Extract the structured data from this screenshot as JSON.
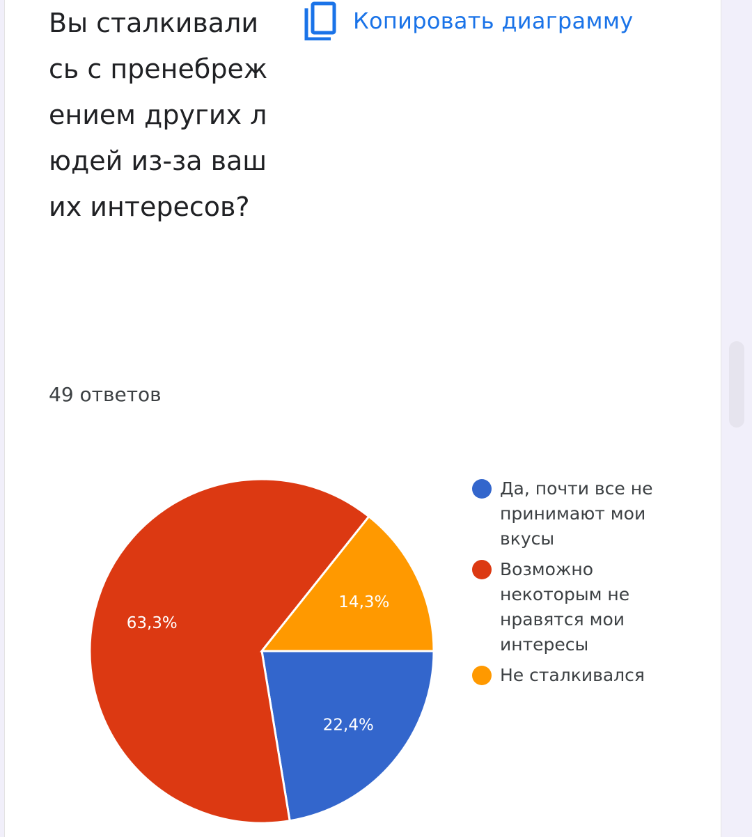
{
  "question": {
    "title": "Вы сталкивались с пренебрежением других людей из-за ваших интересов?",
    "responses_label": "49 ответов"
  },
  "toolbar": {
    "copy_label": "Копировать диаграмму",
    "copy_icon": "copy-icon"
  },
  "colors": {
    "blue": "#3366cc",
    "red": "#dc3912",
    "orange": "#ff9900",
    "link": "#1a73e8"
  },
  "chart_data": {
    "type": "pie",
    "title": "",
    "categories": [
      "Да, почти все не принимают мои вкусы",
      "Возможно некоторым не нравятся мои интересы",
      "Не сталкивался"
    ],
    "values": [
      22.4,
      63.3,
      14.3
    ],
    "labels": [
      "22,4%",
      "63,3%",
      "14,3%"
    ],
    "colors": [
      "#3366cc",
      "#dc3912",
      "#ff9900"
    ],
    "start_angle": "3 o'clock, clockwise",
    "legend_position": "right"
  }
}
